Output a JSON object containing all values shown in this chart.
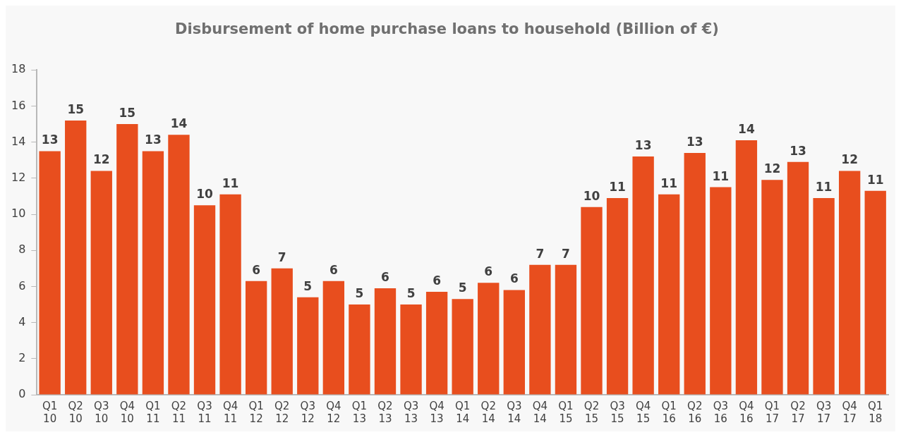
{
  "chart_data": {
    "type": "bar",
    "title": "Disbursement of home purchase loans to household (Billion of €)",
    "categories": [
      "Q1 10",
      "Q2 10",
      "Q3 10",
      "Q4 10",
      "Q1 11",
      "Q2 11",
      "Q3 11",
      "Q4 11",
      "Q1 12",
      "Q2 12",
      "Q3 12",
      "Q4 12",
      "Q1 13",
      "Q2 13",
      "Q3 13",
      "Q4 13",
      "Q1 14",
      "Q2 14",
      "Q3 14",
      "Q4 14",
      "Q1 15",
      "Q2 15",
      "Q3 15",
      "Q4 15",
      "Q1 16",
      "Q2 16",
      "Q3 16",
      "Q4 16",
      "Q1 17",
      "Q2 17",
      "Q3 17",
      "Q4 17",
      "Q1 18"
    ],
    "values": [
      13.5,
      15.2,
      12.4,
      15.0,
      13.5,
      14.4,
      10.5,
      11.1,
      6.3,
      7.0,
      5.4,
      6.3,
      5.0,
      5.9,
      5.0,
      5.7,
      5.3,
      6.2,
      5.8,
      7.2,
      7.2,
      10.4,
      10.9,
      13.2,
      11.1,
      13.4,
      11.5,
      14.1,
      11.9,
      12.9,
      10.9,
      12.4,
      11.3
    ],
    "value_labels": [
      "13",
      "15",
      "12",
      "15",
      "13",
      "14",
      "10",
      "11",
      "6",
      "7",
      "5",
      "6",
      "5",
      "6",
      "5",
      "6",
      "5",
      "6",
      "6",
      "7",
      "7",
      "10",
      "11",
      "13",
      "11",
      "13",
      "11",
      "14",
      "12",
      "13",
      "11",
      "12",
      "11"
    ],
    "color": "#e84e1e",
    "ylim": [
      0,
      18
    ],
    "yticks": [
      0,
      2,
      4,
      6,
      8,
      10,
      12,
      14,
      16,
      18
    ],
    "grid": false,
    "legend": false
  }
}
